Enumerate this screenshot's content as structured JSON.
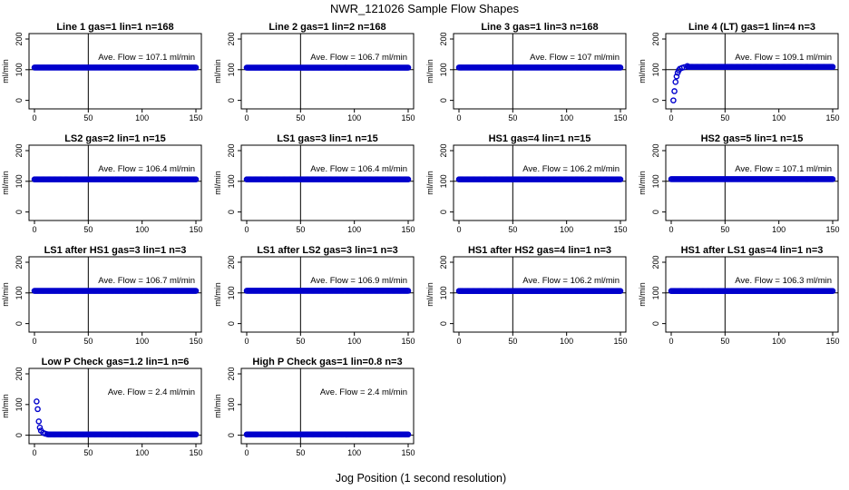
{
  "figure": {
    "title": "NWR_121026  Sample Flow Shapes",
    "xlabel": "Jog Position (1 second resolution)"
  },
  "colors": {
    "points": "#0000cc",
    "axis": "#000000"
  },
  "chart_data": [
    {
      "type": "scatter",
      "title": "Line 1 gas=1 lin=1 n=168",
      "annotation": "Ave. Flow =  107.1  ml/min",
      "ylabel": "ml/min",
      "xlim": [
        0,
        150
      ],
      "ylim": [
        -25,
        210
      ],
      "xticks": [
        0,
        50,
        100,
        150
      ],
      "yticks": [
        0,
        100,
        200
      ],
      "hline": 100,
      "vline": 50,
      "shape": "flat",
      "level": 107.1
    },
    {
      "type": "scatter",
      "title": "Line 2 gas=1 lin=2 n=168",
      "annotation": "Ave. Flow =  106.7  ml/min",
      "ylabel": "ml/min",
      "xlim": [
        0,
        150
      ],
      "ylim": [
        -25,
        210
      ],
      "xticks": [
        0,
        50,
        100,
        150
      ],
      "yticks": [
        0,
        100,
        200
      ],
      "hline": 100,
      "vline": 50,
      "shape": "flat",
      "level": 106.7
    },
    {
      "type": "scatter",
      "title": "Line 3 gas=1 lin=3 n=168",
      "annotation": "Ave. Flow =  107  ml/min",
      "ylabel": "ml/min",
      "xlim": [
        0,
        150
      ],
      "ylim": [
        -25,
        210
      ],
      "xticks": [
        0,
        50,
        100,
        150
      ],
      "yticks": [
        0,
        100,
        200
      ],
      "hline": 100,
      "vline": 50,
      "shape": "flat",
      "level": 107
    },
    {
      "type": "scatter",
      "title": "Line 4 (LT) gas=1 lin=4 n=3",
      "annotation": "Ave. Flow =  109.1  ml/min",
      "ylabel": "ml/min",
      "xlim": [
        0,
        150
      ],
      "ylim": [
        -25,
        210
      ],
      "xticks": [
        0,
        50,
        100,
        150
      ],
      "yticks": [
        0,
        100,
        200
      ],
      "hline": 100,
      "vline": 50,
      "shape": "rise",
      "level": 109.1,
      "early": [
        [
          2,
          0
        ],
        [
          3,
          30
        ],
        [
          4,
          60
        ],
        [
          5,
          78
        ],
        [
          6,
          90
        ],
        [
          7,
          98
        ],
        [
          8,
          103
        ],
        [
          10,
          106
        ],
        [
          12,
          108
        ],
        [
          15,
          112
        ]
      ]
    },
    {
      "type": "scatter",
      "title": "LS2 gas=2 lin=1 n=15",
      "annotation": "Ave. Flow =  106.4  ml/min",
      "ylabel": "ml/min",
      "xlim": [
        0,
        150
      ],
      "ylim": [
        -25,
        210
      ],
      "xticks": [
        0,
        50,
        100,
        150
      ],
      "yticks": [
        0,
        100,
        200
      ],
      "hline": 100,
      "vline": 50,
      "shape": "flat",
      "level": 106.4
    },
    {
      "type": "scatter",
      "title": "LS1 gas=3 lin=1 n=15",
      "annotation": "Ave. Flow =  106.4  ml/min",
      "ylabel": "ml/min",
      "xlim": [
        0,
        150
      ],
      "ylim": [
        -25,
        210
      ],
      "xticks": [
        0,
        50,
        100,
        150
      ],
      "yticks": [
        0,
        100,
        200
      ],
      "hline": 100,
      "vline": 50,
      "shape": "flat",
      "level": 106.4
    },
    {
      "type": "scatter",
      "title": "HS1 gas=4 lin=1 n=15",
      "annotation": "Ave. Flow =  106.2  ml/min",
      "ylabel": "ml/min",
      "xlim": [
        0,
        150
      ],
      "ylim": [
        -25,
        210
      ],
      "xticks": [
        0,
        50,
        100,
        150
      ],
      "yticks": [
        0,
        100,
        200
      ],
      "hline": 100,
      "vline": 50,
      "shape": "flat",
      "level": 106.2
    },
    {
      "type": "scatter",
      "title": "HS2 gas=5 lin=1 n=15",
      "annotation": "Ave. Flow =  107.1  ml/min",
      "ylabel": "ml/min",
      "xlim": [
        0,
        150
      ],
      "ylim": [
        -25,
        210
      ],
      "xticks": [
        0,
        50,
        100,
        150
      ],
      "yticks": [
        0,
        100,
        200
      ],
      "hline": 100,
      "vline": 50,
      "shape": "flat",
      "level": 107.1
    },
    {
      "type": "scatter",
      "title": "LS1 after HS1 gas=3 lin=1 n=3",
      "annotation": "Ave. Flow =  106.7  ml/min",
      "ylabel": "ml/min",
      "xlim": [
        0,
        150
      ],
      "ylim": [
        -25,
        210
      ],
      "xticks": [
        0,
        50,
        100,
        150
      ],
      "yticks": [
        0,
        100,
        200
      ],
      "hline": 100,
      "vline": 50,
      "shape": "flat",
      "level": 106.7
    },
    {
      "type": "scatter",
      "title": "LS1 after LS2 gas=3 lin=1 n=3",
      "annotation": "Ave. Flow =  106.9  ml/min",
      "ylabel": "ml/min",
      "xlim": [
        0,
        150
      ],
      "ylim": [
        -25,
        210
      ],
      "xticks": [
        0,
        50,
        100,
        150
      ],
      "yticks": [
        0,
        100,
        200
      ],
      "hline": 100,
      "vline": 50,
      "shape": "flat",
      "level": 106.9
    },
    {
      "type": "scatter",
      "title": "HS1 after HS2 gas=4 lin=1 n=3",
      "annotation": "Ave. Flow =  106.2  ml/min",
      "ylabel": "ml/min",
      "xlim": [
        0,
        150
      ],
      "ylim": [
        -25,
        210
      ],
      "xticks": [
        0,
        50,
        100,
        150
      ],
      "yticks": [
        0,
        100,
        200
      ],
      "hline": 100,
      "vline": 50,
      "shape": "flat",
      "level": 106.2
    },
    {
      "type": "scatter",
      "title": "HS1 after LS1 gas=4 lin=1 n=3",
      "annotation": "Ave. Flow =  106.3  ml/min",
      "ylabel": "ml/min",
      "xlim": [
        0,
        150
      ],
      "ylim": [
        -25,
        210
      ],
      "xticks": [
        0,
        50,
        100,
        150
      ],
      "yticks": [
        0,
        100,
        200
      ],
      "hline": 100,
      "vline": 50,
      "shape": "flat",
      "level": 106.3
    },
    {
      "type": "scatter",
      "title": "Low P Check gas=1.2 lin=1 n=6",
      "annotation": "Ave. Flow =  2.4  ml/min",
      "ylabel": "ml/min",
      "xlim": [
        0,
        150
      ],
      "ylim": [
        -25,
        210
      ],
      "xticks": [
        0,
        50,
        100,
        150
      ],
      "yticks": [
        0,
        100,
        200
      ],
      "hline": 0,
      "vline": 50,
      "shape": "decay",
      "level": 2.4,
      "early": [
        [
          2,
          110
        ],
        [
          3,
          85
        ],
        [
          4,
          45
        ],
        [
          5,
          25
        ],
        [
          6,
          15
        ],
        [
          8,
          8
        ],
        [
          10,
          5
        ],
        [
          12,
          3
        ]
      ]
    },
    {
      "type": "scatter",
      "title": "High P Check gas=1 lin=0.8 n=3",
      "annotation": "Ave. Flow =  2.4  ml/min",
      "ylabel": "ml/min",
      "xlim": [
        0,
        150
      ],
      "ylim": [
        -25,
        210
      ],
      "xticks": [
        0,
        50,
        100,
        150
      ],
      "yticks": [
        0,
        100,
        200
      ],
      "hline": 0,
      "vline": 50,
      "shape": "flat",
      "level": 2.4
    }
  ]
}
